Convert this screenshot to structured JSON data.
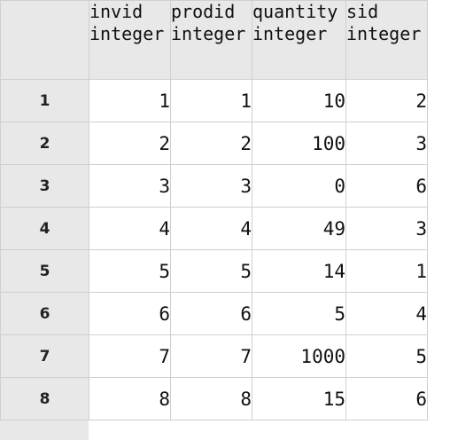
{
  "columns": [
    {
      "name": "invid",
      "type": "integer"
    },
    {
      "name": "prodid",
      "type": "integer"
    },
    {
      "name": "quantity",
      "type": "integer"
    },
    {
      "name": "sid",
      "type": "integer"
    }
  ],
  "rows": [
    {
      "num": "1",
      "cells": [
        "1",
        "1",
        "10",
        "2"
      ]
    },
    {
      "num": "2",
      "cells": [
        "2",
        "2",
        "100",
        "3"
      ]
    },
    {
      "num": "3",
      "cells": [
        "3",
        "3",
        "0",
        "6"
      ]
    },
    {
      "num": "4",
      "cells": [
        "4",
        "4",
        "49",
        "3"
      ]
    },
    {
      "num": "5",
      "cells": [
        "5",
        "5",
        "14",
        "1"
      ]
    },
    {
      "num": "6",
      "cells": [
        "6",
        "6",
        "5",
        "4"
      ]
    },
    {
      "num": "7",
      "cells": [
        "7",
        "7",
        "1000",
        "5"
      ]
    },
    {
      "num": "8",
      "cells": [
        "8",
        "8",
        "15",
        "6"
      ]
    }
  ]
}
